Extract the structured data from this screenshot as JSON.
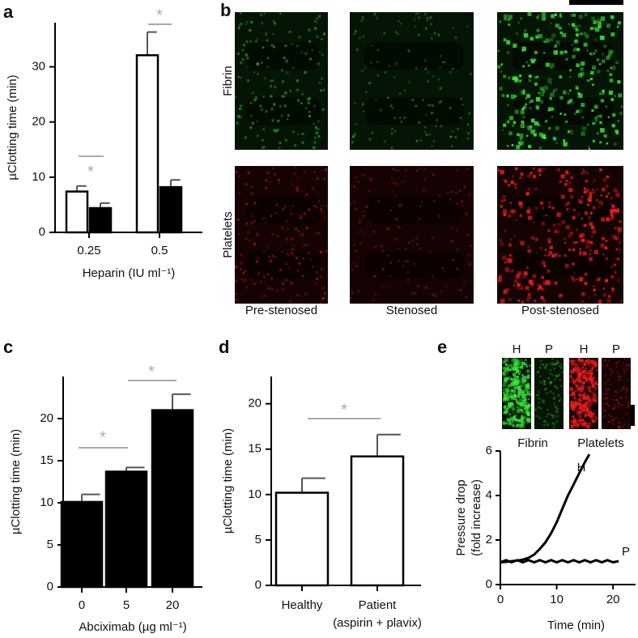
{
  "chart_data": [
    {
      "type": "bar",
      "panel": "a",
      "ylabel": "µClotting time (min)",
      "xlabel": "Heparin (IU ml⁻¹)",
      "categories": [
        "0.25",
        "0.5"
      ],
      "series": [
        {
          "color": "#ffffff",
          "values": [
            7.4,
            32.1
          ],
          "errors": [
            1.0,
            4.2
          ]
        },
        {
          "color": "#000000",
          "values": [
            4.4,
            8.2
          ],
          "errors": [
            0.9,
            1.3
          ]
        }
      ],
      "ylim": [
        0,
        38
      ],
      "yticks": [
        0,
        10,
        20,
        30
      ],
      "annotations": [
        "*",
        "*"
      ]
    },
    {
      "type": "bar",
      "panel": "c",
      "ylabel": "µClotting time (min)",
      "xlabel": "Abciximab (µg ml⁻¹)",
      "categories": [
        "0",
        "5",
        "20"
      ],
      "series": [
        {
          "color": "#000000",
          "values": [
            10.1,
            13.7,
            21.0
          ],
          "errors": [
            0.9,
            0.5,
            1.9
          ]
        }
      ],
      "ylim": [
        0,
        25
      ],
      "yticks": [
        0,
        5,
        10,
        15,
        20
      ],
      "annotations": [
        "*",
        "*"
      ]
    },
    {
      "type": "bar",
      "panel": "d",
      "ylabel": "µClotting time (min)",
      "categories": [
        "Healthy",
        "Patient"
      ],
      "category_sublabels": [
        null,
        "(aspirin + plavix)"
      ],
      "series": [
        {
          "color": "#ffffff",
          "values": [
            10.2,
            14.2
          ]
        },
        {
          "color": "#000000",
          "values": [
            null,
            null
          ]
        }
      ],
      "errors_by_category": [
        1.6,
        2.4
      ],
      "ylim": [
        0,
        23
      ],
      "yticks": [
        0,
        5,
        10,
        15,
        20
      ],
      "annotations": [
        "*"
      ]
    },
    {
      "type": "line",
      "panel": "e",
      "ylabel": [
        "Pressure drop",
        "(fold increase)"
      ],
      "xlabel": "Time (min)",
      "inset": {
        "columns": [
          "H",
          "P",
          "H",
          "P"
        ],
        "groups": [
          "Fibrin",
          "Platelets"
        ]
      },
      "series": [
        {
          "name": "H",
          "color": "#000000",
          "x": [
            0,
            1,
            2,
            3,
            4,
            5,
            6,
            7,
            8,
            9,
            10,
            11,
            12,
            13,
            14,
            15,
            15.8
          ],
          "values": [
            1.0,
            1.02,
            1.05,
            1.08,
            1.12,
            1.2,
            1.35,
            1.6,
            1.9,
            2.3,
            2.8,
            3.4,
            4.0,
            4.5,
            5.0,
            5.5,
            5.85
          ]
        },
        {
          "name": "P",
          "color": "#000000",
          "x": [
            0,
            1,
            2,
            3,
            4,
            5,
            6,
            7,
            8,
            9,
            10,
            11,
            12,
            13,
            14,
            15,
            16,
            17,
            18,
            19,
            20,
            21
          ],
          "values": [
            1.0,
            1.1,
            1.0,
            1.1,
            1.0,
            1.1,
            1.0,
            1.1,
            1.0,
            1.1,
            1.0,
            1.1,
            1.0,
            1.1,
            1.0,
            1.1,
            1.0,
            1.1,
            1.0,
            1.1,
            1.0,
            1.05
          ]
        }
      ],
      "xlim": [
        0,
        24
      ],
      "xticks": [
        0,
        10,
        20
      ],
      "ylim": [
        0,
        6
      ],
      "yticks": [
        0,
        2,
        4,
        6
      ]
    }
  ],
  "image_panel": {
    "panel": "b",
    "row_labels": [
      "Fibrin",
      "Platelets"
    ],
    "column_labels": [
      "Pre-stenosed",
      "Stenosed",
      "Post-stenosed"
    ]
  }
}
